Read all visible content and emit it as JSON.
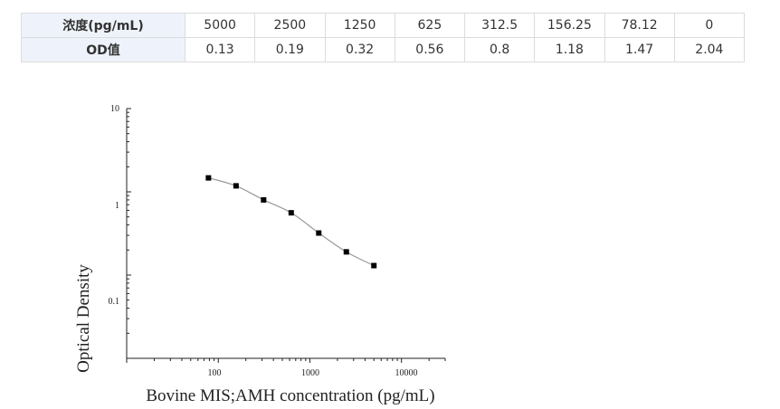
{
  "table": {
    "row1_label": "浓度(pg/mL)",
    "row2_label": "OD值",
    "concentrations": [
      "5000",
      "2500",
      "1250",
      "625",
      "312.5",
      "156.25",
      "78.12",
      "0"
    ],
    "od_values": [
      "0.13",
      "0.19",
      "0.32",
      "0.56",
      "0.8",
      "1.18",
      "1.47",
      "2.04"
    ]
  },
  "chart_data": {
    "type": "scatter",
    "xlabel": "Bovine MIS;AMH concentration (pg/mL)",
    "ylabel": "Optical Density",
    "xscale": "log",
    "yscale": "log",
    "xlim": [
      10,
      30000
    ],
    "ylim": [
      0.01,
      10
    ],
    "x_ticks": [
      "100",
      "1000",
      "10000"
    ],
    "y_ticks": [
      "10",
      "1",
      "0.1"
    ],
    "x": [
      78.12,
      156.25,
      312.5,
      625,
      1250,
      2500,
      5000
    ],
    "y": [
      1.47,
      1.18,
      0.8,
      0.56,
      0.32,
      0.19,
      0.13
    ],
    "fit_line": true,
    "grid": false,
    "series_color": "#000000",
    "fit_color": "#999999"
  }
}
